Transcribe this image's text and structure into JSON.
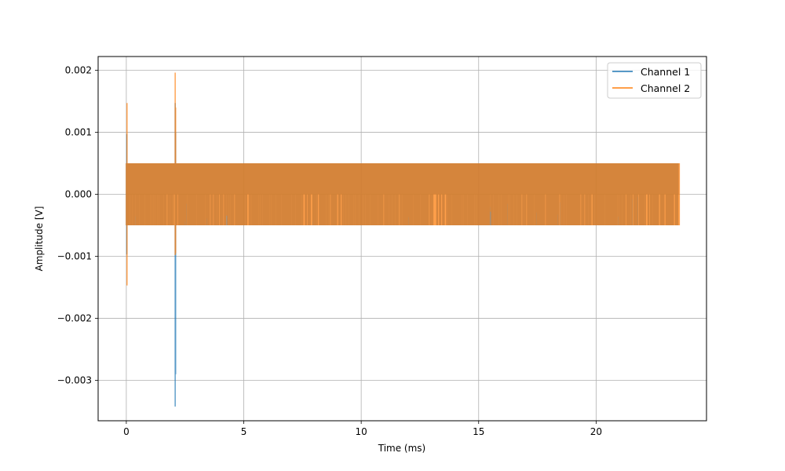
{
  "chart_data": {
    "type": "line",
    "title": "",
    "xlabel": "Time (ms)",
    "ylabel": "Amplitude [V]",
    "xlim": [
      -1.2,
      24.7
    ],
    "ylim": [
      -0.00365,
      0.00222
    ],
    "xticks": [
      0,
      5,
      10,
      15,
      20
    ],
    "xtick_labels": [
      "0",
      "5",
      "10",
      "15",
      "20"
    ],
    "yticks": [
      0.002,
      0.001,
      0.0,
      -0.001,
      -0.002,
      -0.003
    ],
    "ytick_labels": [
      "0.002",
      "0.001",
      "0.000",
      "−0.001",
      "−0.002",
      "−0.003"
    ],
    "grid": true,
    "legend_position": "top-right",
    "series": [
      {
        "name": "Channel 1",
        "color": "#1f77b4",
        "alpha": 0.75,
        "band": [
          -0.0005,
          0.0005
        ],
        "x_range": [
          0.0,
          23.5
        ],
        "spikes": [
          {
            "x": 0.02,
            "min": -0.00097,
            "max": 0.00097
          },
          {
            "x": 2.08,
            "min": -0.00342,
            "max": 0.00147
          },
          {
            "x": 2.1,
            "min": -0.0029,
            "max": 0.001
          }
        ]
      },
      {
        "name": "Channel 2",
        "color": "#ff7f0e",
        "alpha": 0.75,
        "band": [
          -0.0005,
          0.0005
        ],
        "x_range": [
          0.0,
          23.55
        ],
        "spikes": [
          {
            "x": 0.03,
            "min": -0.00147,
            "max": 0.00147
          },
          {
            "x": 2.08,
            "min": -0.00098,
            "max": 0.00196
          },
          {
            "x": 2.1,
            "min": -0.00095,
            "max": 0.0014
          }
        ]
      }
    ]
  }
}
